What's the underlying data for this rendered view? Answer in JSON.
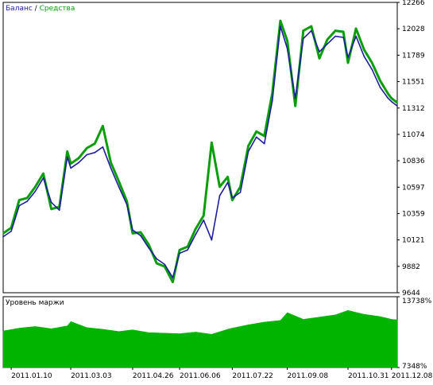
{
  "legend": {
    "balance_label": "Баланс",
    "separator": "/",
    "equity_label": "Средства",
    "balance_color": "#1f1f9e",
    "equity_color": "#0a9e0a"
  },
  "margin_panel": {
    "title": "Уровень маржи",
    "fill_color": "#00b400"
  },
  "chart_data": [
    {
      "type": "line",
      "title": "",
      "series": [
        {
          "name": "Баланс",
          "color": "#1f1f9e",
          "x": [
            "2011.01.03",
            "2011.01.10",
            "2011.01.17",
            "2011.01.24",
            "2011.01.31",
            "2011.02.07",
            "2011.02.14",
            "2011.02.21",
            "2011.02.28",
            "2011.03.03",
            "2011.03.10",
            "2011.03.17",
            "2011.03.24",
            "2011.03.31",
            "2011.04.07",
            "2011.04.14",
            "2011.04.21",
            "2011.04.26",
            "2011.05.03",
            "2011.05.10",
            "2011.05.17",
            "2011.05.24",
            "2011.05.31",
            "2011.06.06",
            "2011.06.13",
            "2011.06.20",
            "2011.06.27",
            "2011.07.04",
            "2011.07.11",
            "2011.07.18",
            "2011.07.22",
            "2011.07.29",
            "2011.08.05",
            "2011.08.12",
            "2011.08.19",
            "2011.08.26",
            "2011.09.02",
            "2011.09.08",
            "2011.09.15",
            "2011.09.22",
            "2011.09.29",
            "2011.10.06",
            "2011.10.13",
            "2011.10.20",
            "2011.10.27",
            "2011.10.31",
            "2011.11.07",
            "2011.11.14",
            "2011.11.21",
            "2011.11.28",
            "2011.12.05",
            "2011.12.08",
            "2011.12.13"
          ],
          "values": [
            10150,
            10200,
            10430,
            10470,
            10560,
            10680,
            10460,
            10390,
            10870,
            10770,
            10820,
            10890,
            10910,
            10960,
            10770,
            10600,
            10440,
            10210,
            10160,
            10050,
            9950,
            9900,
            9780,
            10000,
            10030,
            10170,
            10300,
            10120,
            10520,
            10640,
            10500,
            10550,
            10920,
            11050,
            10990,
            11380,
            12050,
            11850,
            11400,
            11940,
            12010,
            11820,
            11890,
            11960,
            11950,
            11770,
            11960,
            11780,
            11660,
            11500,
            11400,
            11370,
            11330
          ]
        },
        {
          "name": "Средства",
          "color": "#0a9e0a",
          "x": [
            "2011.01.03",
            "2011.01.10",
            "2011.01.17",
            "2011.01.24",
            "2011.01.31",
            "2011.02.07",
            "2011.02.14",
            "2011.02.21",
            "2011.02.28",
            "2011.03.03",
            "2011.03.10",
            "2011.03.17",
            "2011.03.24",
            "2011.03.31",
            "2011.04.07",
            "2011.04.14",
            "2011.04.21",
            "2011.04.26",
            "2011.05.03",
            "2011.05.10",
            "2011.05.17",
            "2011.05.24",
            "2011.05.31",
            "2011.06.06",
            "2011.06.13",
            "2011.06.20",
            "2011.06.27",
            "2011.07.04",
            "2011.07.11",
            "2011.07.18",
            "2011.07.22",
            "2011.07.29",
            "2011.08.05",
            "2011.08.12",
            "2011.08.19",
            "2011.08.26",
            "2011.09.02",
            "2011.09.08",
            "2011.09.15",
            "2011.09.22",
            "2011.09.29",
            "2011.10.06",
            "2011.10.13",
            "2011.10.20",
            "2011.10.27",
            "2011.10.31",
            "2011.11.07",
            "2011.11.14",
            "2011.11.21",
            "2011.11.28",
            "2011.12.05",
            "2011.12.08",
            "2011.12.13"
          ],
          "values": [
            10180,
            10230,
            10480,
            10500,
            10600,
            10720,
            10400,
            10420,
            10920,
            10810,
            10860,
            10950,
            10990,
            11150,
            10820,
            10650,
            10470,
            10180,
            10190,
            10080,
            9910,
            9880,
            9740,
            10030,
            10060,
            10220,
            10340,
            11000,
            10600,
            10690,
            10480,
            10600,
            10970,
            11100,
            11060,
            11450,
            12100,
            11920,
            11330,
            12010,
            12050,
            11760,
            11930,
            12010,
            12000,
            11720,
            12030,
            11840,
            11720,
            11560,
            11440,
            11400,
            11360
          ]
        }
      ],
      "ylim": [
        9644,
        12266
      ],
      "y_ticks": [
        "12266",
        "12028",
        "11789",
        "11551",
        "11312",
        "11074",
        "10836",
        "10597",
        "10359",
        "10121",
        "9882",
        "9644"
      ],
      "x_ticks": [
        "2011.01.10",
        "2011.03.03",
        "2011.04.26",
        "2011.06.06",
        "2011.07.22",
        "2011.09.08",
        "2011.10.31",
        "2011.12.08"
      ],
      "grid": false,
      "legend_position": "top-left"
    },
    {
      "type": "area",
      "title": "Уровень маржи",
      "series": [
        {
          "name": "Уровень маржи",
          "color": "#00b400",
          "x": [
            "2011.01.03",
            "2011.01.17",
            "2011.01.31",
            "2011.02.14",
            "2011.02.28",
            "2011.03.03",
            "2011.03.17",
            "2011.03.31",
            "2011.04.14",
            "2011.04.26",
            "2011.05.10",
            "2011.05.24",
            "2011.06.06",
            "2011.06.20",
            "2011.07.04",
            "2011.07.18",
            "2011.07.22",
            "2011.08.05",
            "2011.08.19",
            "2011.09.02",
            "2011.09.08",
            "2011.09.22",
            "2011.10.06",
            "2011.10.20",
            "2011.10.31",
            "2011.11.14",
            "2011.11.28",
            "2011.12.08",
            "2011.12.13"
          ],
          "values": [
            10650,
            10900,
            11050,
            10850,
            11100,
            11500,
            10950,
            10800,
            10600,
            10750,
            10500,
            10450,
            10400,
            10550,
            10350,
            10800,
            10900,
            11200,
            11450,
            11600,
            12300,
            11700,
            11900,
            12100,
            12500,
            12150,
            11950,
            11700,
            11650
          ]
        }
      ],
      "y_ticks": [
        "13738%",
        "7348%"
      ],
      "ylim": [
        7348,
        13738
      ],
      "x_ticks": [
        "2011.01.10",
        "2011.03.03",
        "2011.04.26",
        "2011.06.06",
        "2011.07.22",
        "2011.09.08",
        "2011.10.31",
        "2011.12.08"
      ],
      "grid": false
    }
  ]
}
